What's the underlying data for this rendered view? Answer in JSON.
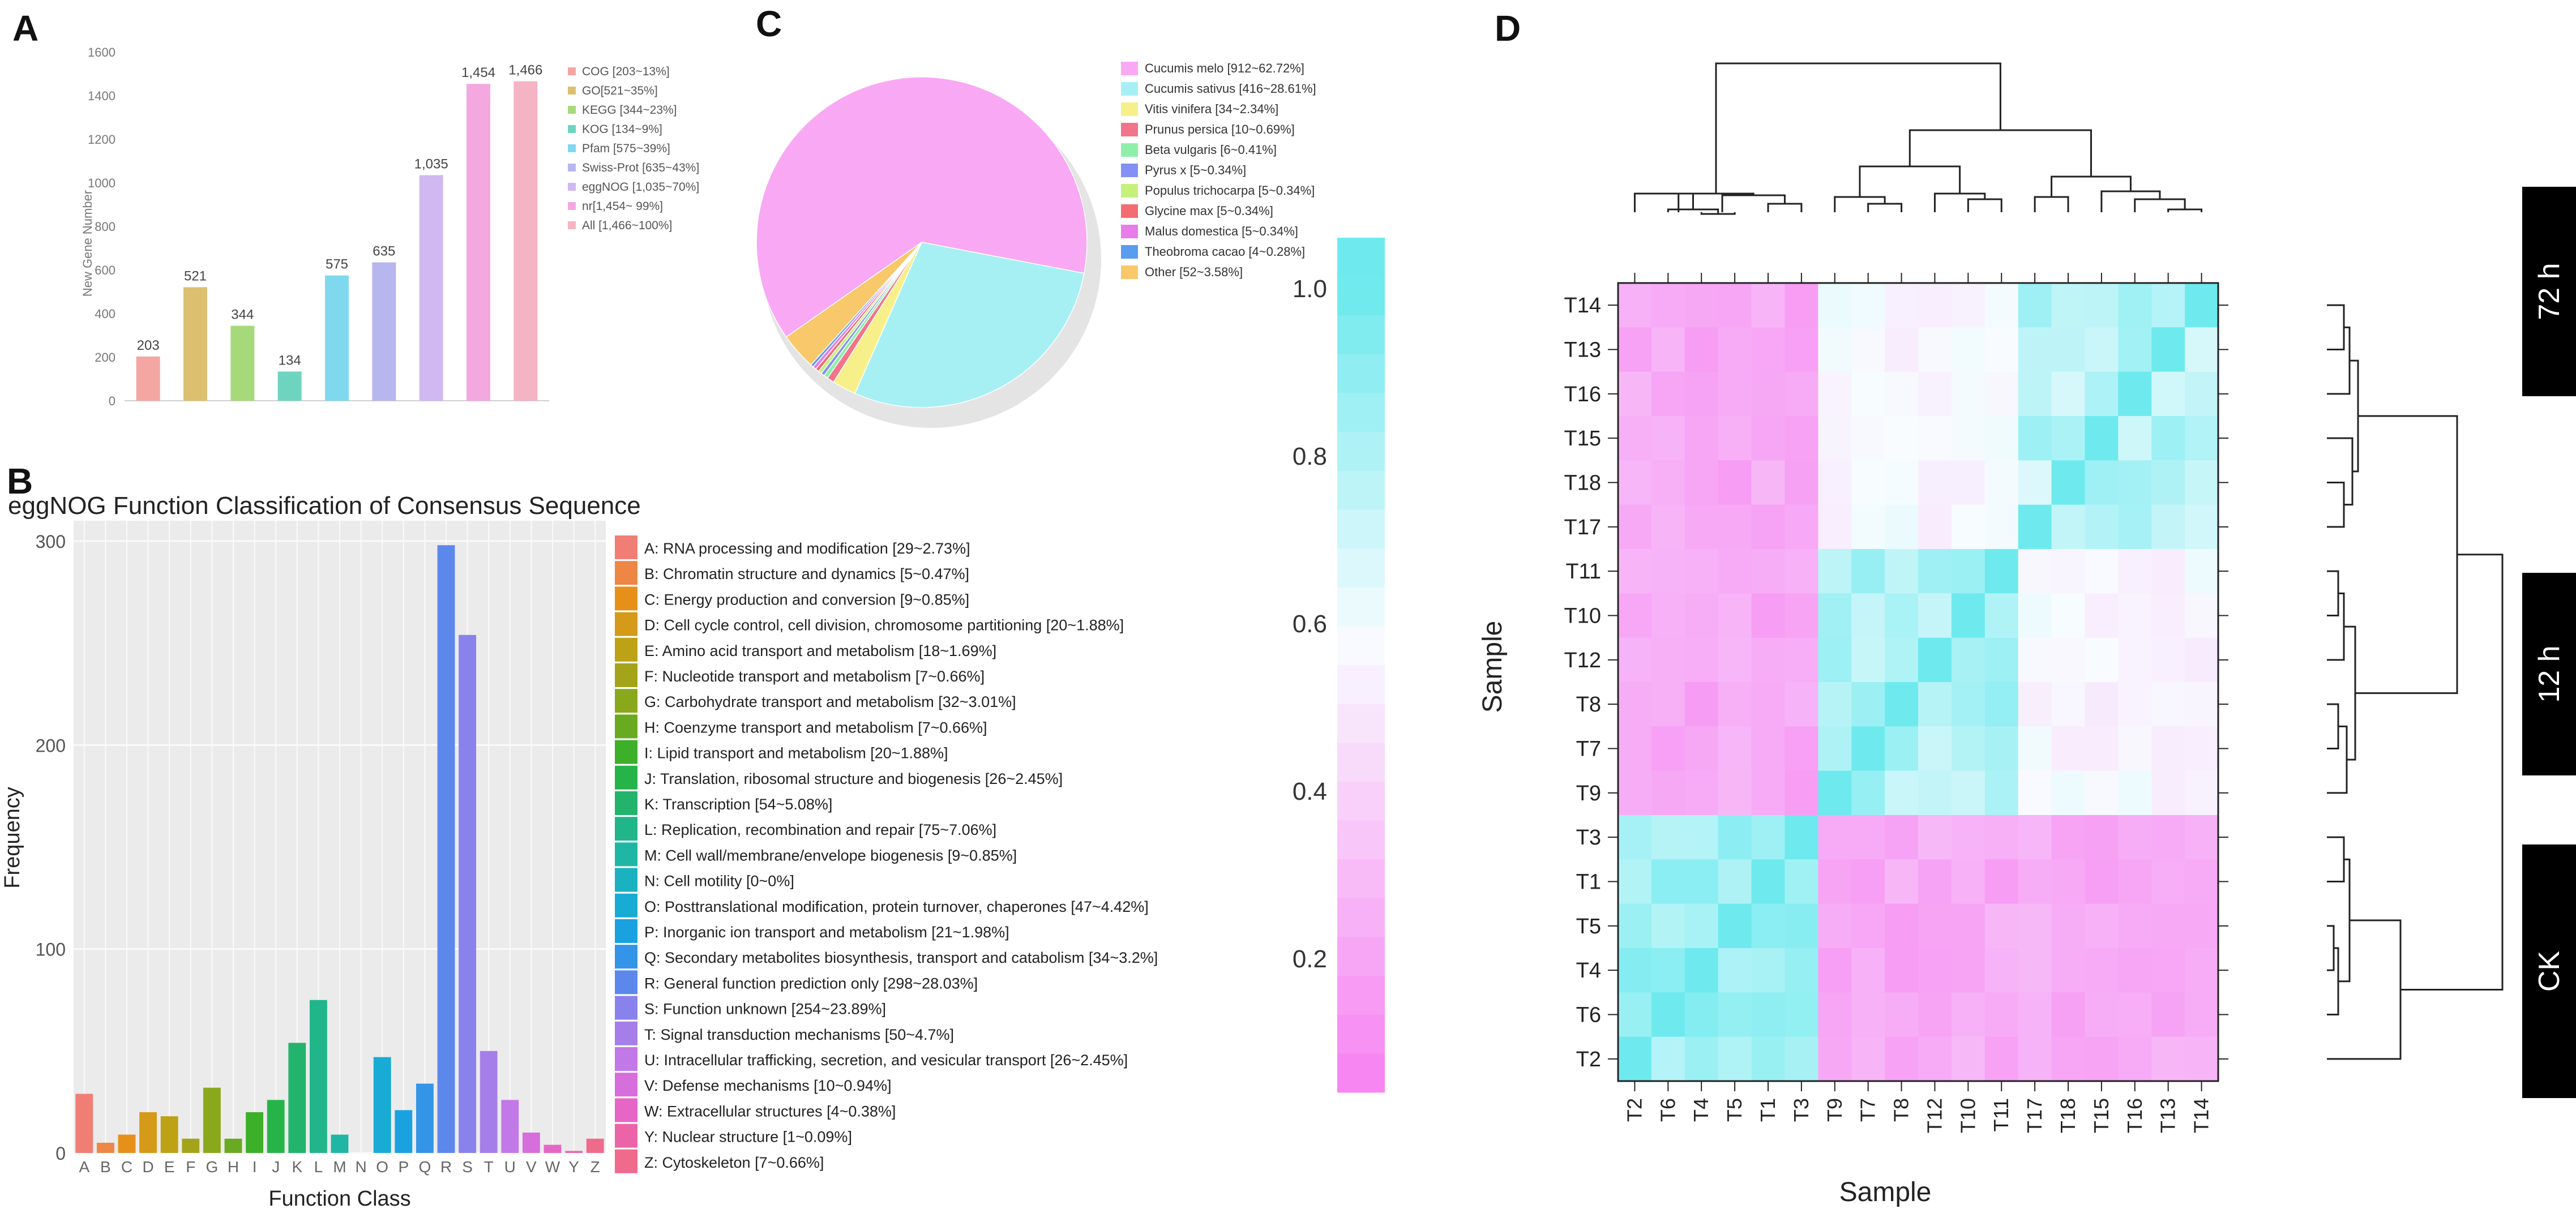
{
  "panels": {
    "a": "A",
    "b": "B",
    "c": "C",
    "d": "D"
  },
  "chart_data": [
    {
      "id": "A",
      "type": "bar",
      "ylabel": "New Gene Number",
      "ylim": [
        0,
        1600
      ],
      "yticks": [
        0,
        200,
        400,
        600,
        800,
        1000,
        1200,
        1400,
        1600
      ],
      "categories": [
        "COG",
        "GO",
        "KEGG",
        "KOG",
        "Pfam",
        "Swiss-Prot",
        "eggNOG",
        "nr",
        "All"
      ],
      "values": [
        203,
        521,
        344,
        134,
        575,
        635,
        1035,
        1454,
        1466
      ],
      "value_labels": [
        "203",
        "521",
        "344",
        "134",
        "575",
        "635",
        "1,035",
        "1,454",
        "1,466"
      ],
      "legend": [
        "COG [203~13%]",
        "GO[521~35%]",
        "KEGG [344~23%]",
        "KOG [134~9%]",
        "Pfam [575~39%]",
        "Swiss-Prot [635~43%]",
        "eggNOG [1,035~70%]",
        "nr[1,454~ 99%]",
        "All [1,466~100%]"
      ],
      "colors": [
        "#f4a6a2",
        "#dcc070",
        "#a6d97a",
        "#6ed4c0",
        "#7fd8ee",
        "#b8b6ee",
        "#d0b8f0",
        "#f3a8e0",
        "#f4b4c4"
      ]
    },
    {
      "id": "B",
      "type": "bar",
      "title": "eggNOG Function Classification of Consensus Sequence",
      "xlabel": "Function Class",
      "ylabel": "Frequency",
      "ylim": [
        0,
        310
      ],
      "yticks": [
        0,
        100,
        200,
        300
      ],
      "categories": [
        "A",
        "B",
        "C",
        "D",
        "E",
        "F",
        "G",
        "H",
        "I",
        "J",
        "K",
        "L",
        "M",
        "N",
        "O",
        "P",
        "Q",
        "R",
        "S",
        "T",
        "U",
        "V",
        "W",
        "Y",
        "Z"
      ],
      "values": [
        29,
        5,
        9,
        20,
        18,
        7,
        32,
        7,
        20,
        26,
        54,
        75,
        9,
        0,
        47,
        21,
        34,
        298,
        254,
        50,
        26,
        10,
        4,
        1,
        7
      ],
      "colors": [
        "#f07e75",
        "#ee8646",
        "#e6901a",
        "#d49a18",
        "#bea216",
        "#a4a41a",
        "#8aa81c",
        "#6aaa20",
        "#3cb028",
        "#26b44a",
        "#22b46c",
        "#20b68a",
        "#20b6a6",
        "#1ab2c0",
        "#18acd4",
        "#1aa2e0",
        "#3494e8",
        "#5c88ec",
        "#8a82ec",
        "#a67eea",
        "#c278e6",
        "#d66edc",
        "#e666c6",
        "#ec64a8",
        "#f06a8c"
      ],
      "legend": [
        "A: RNA processing and modification [29~2.73%]",
        "B: Chromatin structure and dynamics [5~0.47%]",
        "C: Energy production and conversion [9~0.85%]",
        "D: Cell cycle control, cell division, chromosome partitioning [20~1.88%]",
        "E: Amino acid transport and metabolism [18~1.69%]",
        "F: Nucleotide transport and metabolism [7~0.66%]",
        "G: Carbohydrate transport and metabolism [32~3.01%]",
        "H: Coenzyme transport and metabolism [7~0.66%]",
        "I: Lipid transport and metabolism [20~1.88%]",
        "J: Translation, ribosomal structure and biogenesis [26~2.45%]",
        "K: Transcription [54~5.08%]",
        "L: Replication, recombination and repair [75~7.06%]",
        "M: Cell wall/membrane/envelope biogenesis [9~0.85%]",
        "N: Cell motility [0~0%]",
        "O: Posttranslational modification, protein turnover, chaperones [47~4.42%]",
        "P: Inorganic ion transport and metabolism [21~1.98%]",
        "Q: Secondary metabolites biosynthesis, transport and catabolism [34~3.2%]",
        "R: General function prediction only [298~28.03%]",
        "S: Function unknown [254~23.89%]",
        "T: Signal transduction mechanisms [50~4.7%]",
        "U: Intracellular trafficking, secretion, and vesicular transport [26~2.45%]",
        "V: Defense mechanisms [10~0.94%]",
        "W: Extracellular structures [4~0.38%]",
        "Y: Nuclear structure [1~0.09%]",
        "Z: Cytoskeleton [7~0.66%]"
      ]
    },
    {
      "id": "C",
      "type": "pie",
      "labels": [
        "Cucumis melo",
        "Cucumis sativus",
        "Vitis vinifera",
        "Prunus persica",
        "Beta vulgaris",
        "Pyrus x",
        "Populus trichocarpa",
        "Glycine max",
        "Malus domestica",
        "Theobroma cacao",
        "Other"
      ],
      "values": [
        62.72,
        28.61,
        2.34,
        0.69,
        0.41,
        0.34,
        0.34,
        0.34,
        0.34,
        0.28,
        3.58
      ],
      "legend": [
        "Cucumis melo [912~62.72%]",
        "Cucumis sativus [416~28.61%]",
        "Vitis vinifera [34~2.34%]",
        "Prunus persica [10~0.69%]",
        "Beta vulgaris [6~0.41%]",
        "Pyrus x [5~0.34%]",
        "Populus trichocarpa [5~0.34%]",
        "Glycine max [5~0.34%]",
        "Malus domestica [5~0.34%]",
        "Theobroma cacao [4~0.28%]",
        "Other [52~3.58%]"
      ],
      "colors": [
        "#f9a8f4",
        "#a6f0f4",
        "#f7f08a",
        "#f2748a",
        "#8ef0a8",
        "#8490f4",
        "#c6f07c",
        "#f26c72",
        "#e87ce8",
        "#5a9cf0",
        "#f8c86a"
      ]
    },
    {
      "id": "D",
      "type": "heatmap",
      "xlabel": "Sample",
      "ylabel": "Sample",
      "colorbar_ticks": [
        0.2,
        0.4,
        0.6,
        0.8,
        1.0
      ],
      "colorbar_tick_labels": [
        "0.2",
        "0.4",
        "0.6",
        "0.8",
        "1.0"
      ],
      "x": [
        "T2",
        "T6",
        "T4",
        "T5",
        "T1",
        "T3",
        "T9",
        "T7",
        "T8",
        "T12",
        "T10",
        "T11",
        "T17",
        "T18",
        "T15",
        "T16",
        "T13",
        "T14"
      ],
      "y": [
        "T14",
        "T13",
        "T16",
        "T15",
        "T18",
        "T17",
        "T11",
        "T10",
        "T12",
        "T8",
        "T7",
        "T9",
        "T3",
        "T1",
        "T5",
        "T4",
        "T6",
        "T2"
      ],
      "groups": [
        {
          "label": "72 h",
          "samples": [
            "T14",
            "T13",
            "T16",
            "T15",
            "T18",
            "T17"
          ]
        },
        {
          "label": "12 h",
          "samples": [
            "T11",
            "T10",
            "T12",
            "T8",
            "T7",
            "T9"
          ]
        },
        {
          "label": "CK",
          "samples": [
            "T3",
            "T1",
            "T5",
            "T4",
            "T6",
            "T2"
          ]
        }
      ]
    }
  ]
}
